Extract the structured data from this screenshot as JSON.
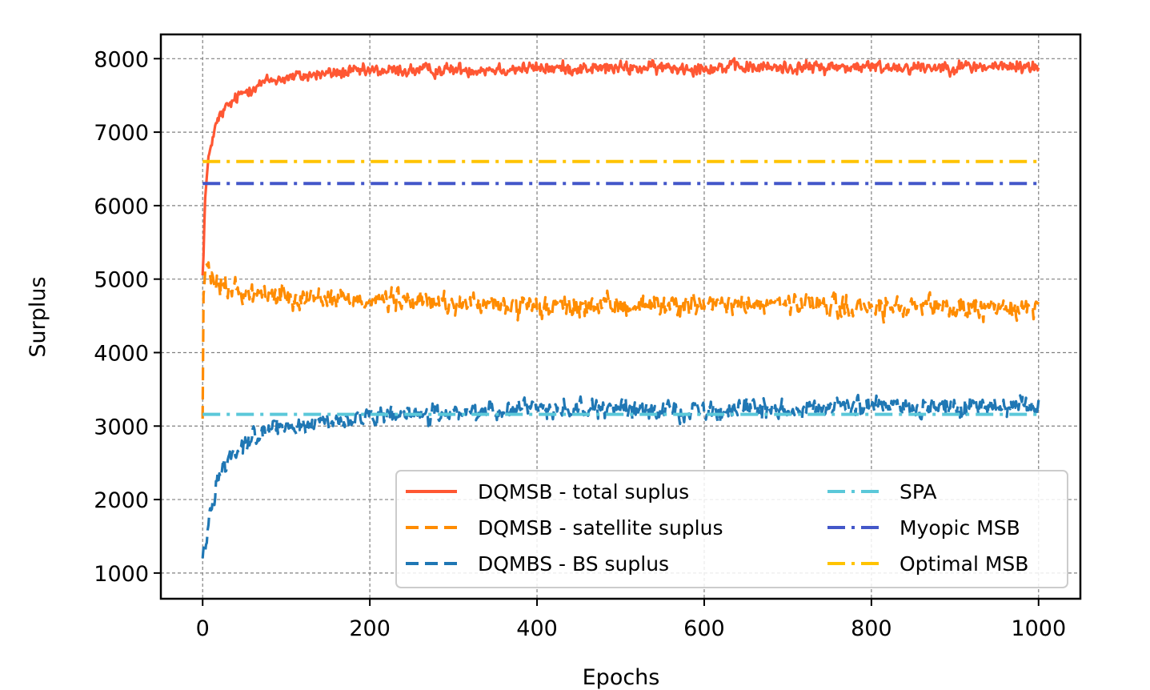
{
  "chart_data": {
    "type": "line",
    "title": "",
    "xlabel": "Epochs",
    "ylabel": "Surplus",
    "xlim": [
      -50,
      1050
    ],
    "ylim": [
      650,
      8330
    ],
    "xticks": [
      0,
      200,
      400,
      600,
      800,
      1000
    ],
    "yticks": [
      1000,
      2000,
      3000,
      4000,
      5000,
      6000,
      7000,
      8000
    ],
    "grid": true,
    "legend_position": "lower-right",
    "series": [
      {
        "name": "DQMSB - total suplus",
        "style": "solid",
        "color": "#ff5733",
        "noisy": true,
        "x": [
          0,
          3,
          6,
          10,
          15,
          20,
          30,
          40,
          50,
          60,
          80,
          100,
          150,
          200,
          300,
          400,
          500,
          600,
          700,
          800,
          900,
          1000
        ],
        "values": [
          5050,
          6100,
          6500,
          6850,
          7050,
          7200,
          7350,
          7450,
          7550,
          7620,
          7700,
          7740,
          7800,
          7830,
          7850,
          7870,
          7870,
          7880,
          7880,
          7885,
          7890,
          7890
        ]
      },
      {
        "name": "DQMSB - satellite suplus",
        "style": "dashed",
        "color": "#ff8c00",
        "noisy": true,
        "x": [
          0,
          1,
          3,
          5,
          10,
          20,
          40,
          60,
          100,
          200,
          300,
          400,
          500,
          600,
          700,
          800,
          900,
          1000
        ],
        "values": [
          3100,
          4800,
          5100,
          5150,
          5000,
          4900,
          4850,
          4800,
          4780,
          4720,
          4680,
          4600,
          4640,
          4650,
          4650,
          4600,
          4600,
          4620
        ]
      },
      {
        "name": "DQMBS - BS suplus",
        "style": "dashed",
        "color": "#1f77b4",
        "noisy": true,
        "x": [
          0,
          3,
          6,
          10,
          15,
          20,
          30,
          40,
          60,
          80,
          100,
          150,
          200,
          300,
          400,
          500,
          600,
          700,
          800,
          900,
          1000
        ],
        "values": [
          1200,
          1400,
          1600,
          1900,
          2150,
          2350,
          2550,
          2700,
          2850,
          2930,
          2990,
          3060,
          3110,
          3170,
          3260,
          3220,
          3210,
          3240,
          3270,
          3250,
          3270
        ]
      },
      {
        "name": "SPA",
        "style": "dashdot",
        "color": "#5bc8d9",
        "x": [
          0,
          1000
        ],
        "values": [
          3160,
          3160
        ]
      },
      {
        "name": "Myopic MSB",
        "style": "dashdot",
        "color": "#4357c9",
        "x": [
          0,
          1000
        ],
        "values": [
          6300,
          6300
        ]
      },
      {
        "name": "Optimal MSB",
        "style": "dashdot",
        "color": "#ffc300",
        "x": [
          0,
          1000
        ],
        "values": [
          6600,
          6600
        ]
      }
    ]
  }
}
